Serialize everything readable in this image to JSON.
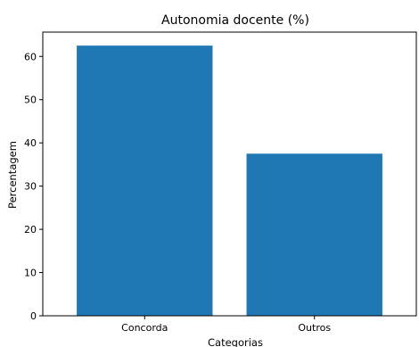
{
  "chart_data": {
    "type": "bar",
    "title": "Autonomia docente (%)",
    "xlabel": "Categorias",
    "ylabel": "Percentagem",
    "categories": [
      "Concorda",
      "Outros"
    ],
    "values": [
      62.5,
      37.5
    ],
    "ylim": [
      0,
      65.625
    ],
    "yticks": [
      0,
      10,
      20,
      30,
      40,
      50,
      60
    ],
    "ytick_labels": [
      "0",
      "10",
      "20",
      "30",
      "40",
      "50",
      "60"
    ],
    "grid": false,
    "legend": "none",
    "bar_color": "#1f77b4"
  }
}
